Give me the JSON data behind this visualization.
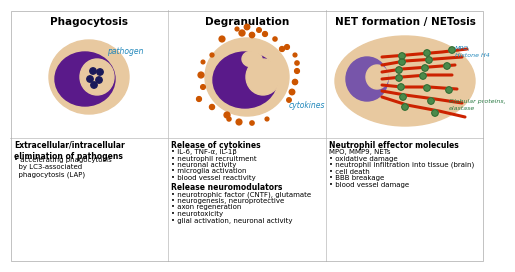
{
  "bg_color": "#ffffff",
  "panel_titles": [
    "Phagocytosis",
    "Degranulation",
    "NET formation / NETosis"
  ],
  "title_fontsize": 7.5,
  "body_fontsize": 5.0,
  "bold_fontsize": 5.5,
  "panel1_label": "pathogen",
  "panel1_text_title": "Extracellular/intracellular\nelimination of pathogens",
  "panel1_bullet_lines": [
    "accelerating phagocytosis",
    "by LC3-associated",
    "phagocytosis (LAP)"
  ],
  "panel2_label": "cytokines",
  "panel2_text_title1": "Release of cytokines",
  "panel2_bullets1": [
    "IL-6, TNF-α, IL-1β",
    "neutrophil recruitment",
    "neuronal activity",
    "microglia activation",
    "blood vessel reactivity"
  ],
  "panel2_text_title2": "Release neuromodulators",
  "panel2_bullets2": [
    "neurotrophic factor (CNTF), glutamate",
    "neurogenesis, neuroprotective",
    "axon regeneration",
    "neurotoxicity",
    "glial activation, neuronal activity"
  ],
  "panel3_label1": "MPO,\nHistone H4",
  "panel3_label2": "Globular proteins,\nelastase",
  "panel3_text_title": "Neutrophil effector molecules",
  "panel3_subtitle": "MPO, MMP9, NETs",
  "panel3_bullets": [
    "oxidative damage",
    "neutrophil infiltration into tissue (brain)",
    "cell death",
    "BBB breakage",
    "blood vessel damage"
  ],
  "cell_outer_color": "#e8c9a0",
  "cell_inner_color": "#5a1a8a",
  "pathogen_color": "#1a1a5a",
  "cytokine_color": "#cc5500",
  "net_color_red": "#cc2200",
  "net_node_color": "#4a8a4a",
  "net_inner_color": "#7755aa",
  "label_cyan": "#2288bb",
  "label_green": "#2a7a44",
  "bullet": "•"
}
